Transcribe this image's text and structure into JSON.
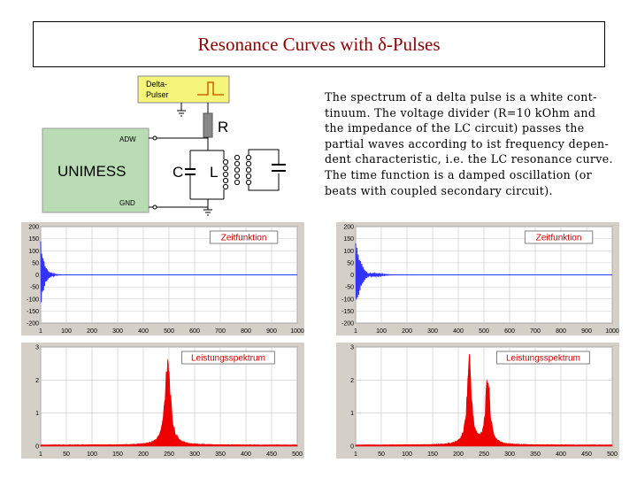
{
  "title": "Resonance Curves with δ-Pulses",
  "description_lines": [
    "The spectrum of a delta pulse is a white cont-",
    "tinuum. The voltage divider (R=10 kOhm and",
    "the impedance of the LC circuit) passes the",
    "partial waves according to ist frequency depen-",
    "dent characteristic, i.e. the LC resonance curve.",
    "The time function is a damped oscillation (or",
    "beats with coupled secondary circuit)."
  ],
  "circuit": {
    "pulser_label_1": "Delta-",
    "pulser_label_2": "Pulser",
    "device_label": "UNIMESS",
    "adw_label": "ADW",
    "gnd_label": "GND",
    "resistor_label": "R",
    "capacitor_label": "C",
    "inductor_label": "L",
    "colors": {
      "device": "#b9dcb4",
      "pulser": "#f5f57a",
      "wire": "#000000"
    }
  },
  "chart_data": [
    {
      "type": "line",
      "label": "Zeitfunktion",
      "x_ticks": [
        "1",
        "100",
        "200",
        "300",
        "400",
        "500",
        "600",
        "700",
        "800",
        "900",
        "1000"
      ],
      "y_ticks": [
        "200",
        "150",
        "100",
        "50",
        "0",
        "-50",
        "-100",
        "-150",
        "-200"
      ],
      "xlim": [
        1,
        1000
      ],
      "ylim": [
        -200,
        200
      ],
      "series": [
        {
          "color": "#3333ff",
          "decay": 0.07,
          "freq": 0.22,
          "amp": 150
        }
      ],
      "grid": true
    },
    {
      "type": "line",
      "label": "Zeitfunktion",
      "x_ticks": [
        "1",
        "100",
        "200",
        "300",
        "400",
        "500",
        "600",
        "700",
        "800",
        "900",
        "1000"
      ],
      "y_ticks": [
        "200",
        "150",
        "100",
        "50",
        "0",
        "-50",
        "-100",
        "-150",
        "-200"
      ],
      "xlim": [
        1,
        1000
      ],
      "ylim": [
        -200,
        200
      ],
      "series": [
        {
          "color": "#3333ff",
          "decay": 0.035,
          "freq": 0.2,
          "amp": 140,
          "beat": 0.03
        }
      ],
      "grid": true
    },
    {
      "type": "area",
      "label": "Leistungsspektrum",
      "x_ticks": [
        "1",
        "50",
        "100",
        "150",
        "200",
        "250",
        "300",
        "350",
        "400",
        "450",
        "500"
      ],
      "y_ticks": [
        "3",
        "2",
        "1",
        "0"
      ],
      "xlim": [
        1,
        500
      ],
      "ylim": [
        0,
        3.3
      ],
      "peaks": [
        {
          "x": 248,
          "height": 2.9,
          "width": 6
        }
      ],
      "base": 0.04,
      "color": "#ee0000",
      "grid": true
    },
    {
      "type": "area",
      "label": "Leistungsspektrum",
      "x_ticks": [
        "1",
        "50",
        "100",
        "150",
        "200",
        "250",
        "300",
        "350",
        "400",
        "450",
        "500"
      ],
      "y_ticks": [
        "3",
        "2",
        "1",
        "0"
      ],
      "xlim": [
        1,
        500
      ],
      "ylim": [
        0,
        3.3
      ],
      "peaks": [
        {
          "x": 222,
          "height": 2.8,
          "width": 5
        },
        {
          "x": 258,
          "height": 2.2,
          "width": 5
        }
      ],
      "base": 0.04,
      "color": "#ee0000",
      "grid": true
    }
  ]
}
